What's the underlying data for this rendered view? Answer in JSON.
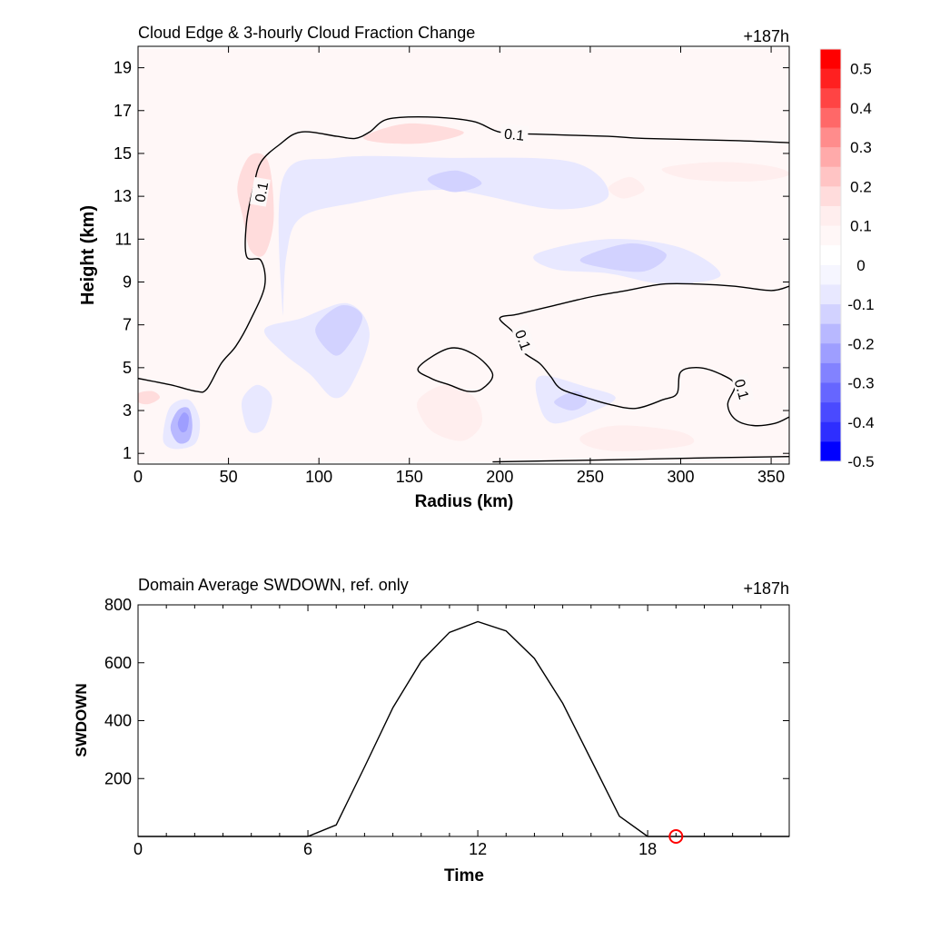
{
  "chart_data": [
    {
      "type": "contour",
      "title": "Cloud Edge & 3-hourly Cloud Fraction Change",
      "time_label": "+187h",
      "xlabel": "Radius (km)",
      "ylabel": "Height (km)",
      "xlim": [
        0,
        360
      ],
      "ylim": [
        0.5,
        20
      ],
      "xticks": [
        0,
        50,
        100,
        150,
        200,
        250,
        300,
        350
      ],
      "yticks": [
        1,
        3,
        5,
        7,
        9,
        11,
        13,
        15,
        17,
        19
      ],
      "contour_level": "0.1",
      "contour_labels": [
        {
          "text": "0.1",
          "x": 208,
          "y": 15.9,
          "rotate": 6
        },
        {
          "text": "0.1",
          "x": 68,
          "y": 13.2,
          "rotate": -80
        },
        {
          "text": "0.1",
          "x": 213,
          "y": 6.3,
          "rotate": 70
        },
        {
          "text": "0.1",
          "x": 334,
          "y": 4.0,
          "rotate": 75
        }
      ],
      "contour_lines": [
        [
          [
            0,
            4.5
          ],
          [
            18,
            4.2
          ],
          [
            32,
            3.9
          ],
          [
            38,
            4.0
          ],
          [
            46,
            5.2
          ],
          [
            54,
            6.0
          ],
          [
            62,
            7.2
          ],
          [
            70,
            8.8
          ],
          [
            68,
            10.0
          ],
          [
            60,
            10.2
          ],
          [
            60,
            11.8
          ],
          [
            64,
            13.5
          ],
          [
            68,
            14.6
          ],
          [
            78,
            15.4
          ],
          [
            90,
            16.0
          ],
          [
            110,
            15.8
          ],
          [
            120,
            15.7
          ],
          [
            128,
            16.0
          ],
          [
            138,
            16.6
          ],
          [
            160,
            16.7
          ],
          [
            185,
            16.5
          ],
          [
            200,
            16.0
          ],
          [
            220,
            15.9
          ],
          [
            260,
            15.8
          ],
          [
            280,
            15.7
          ],
          [
            330,
            15.6
          ],
          [
            360,
            15.5
          ]
        ],
        [
          [
            360,
            8.8
          ],
          [
            350,
            8.6
          ],
          [
            330,
            8.8
          ],
          [
            310,
            8.9
          ],
          [
            290,
            8.9
          ],
          [
            270,
            8.6
          ],
          [
            250,
            8.3
          ],
          [
            230,
            7.9
          ],
          [
            210,
            7.5
          ],
          [
            200,
            7.3
          ],
          [
            208,
            6.6
          ],
          [
            212,
            5.8
          ],
          [
            222,
            5.2
          ],
          [
            228,
            4.6
          ],
          [
            234,
            4.0
          ],
          [
            248,
            3.6
          ],
          [
            260,
            3.3
          ],
          [
            275,
            3.1
          ],
          [
            290,
            3.5
          ],
          [
            298,
            3.8
          ],
          [
            300,
            4.8
          ],
          [
            310,
            5.0
          ],
          [
            322,
            4.7
          ],
          [
            330,
            4.2
          ],
          [
            326,
            3.3
          ],
          [
            330,
            2.6
          ],
          [
            340,
            2.3
          ],
          [
            352,
            2.4
          ],
          [
            360,
            2.7
          ]
        ],
        [
          [
            155,
            5.0
          ],
          [
            172,
            5.9
          ],
          [
            186,
            5.6
          ],
          [
            196,
            4.7
          ],
          [
            190,
            4.0
          ],
          [
            182,
            3.9
          ],
          [
            172,
            4.2
          ],
          [
            162,
            4.5
          ],
          [
            155,
            5.0
          ]
        ],
        [
          [
            196,
            0.6
          ],
          [
            260,
            0.7
          ],
          [
            320,
            0.8
          ],
          [
            360,
            0.85
          ]
        ]
      ],
      "colorbar": {
        "levels": [
          0.5,
          0.45,
          0.4,
          0.35,
          0.3,
          0.25,
          0.2,
          0.15,
          0.1,
          0.05,
          0,
          -0.05,
          -0.1,
          -0.15,
          -0.2,
          -0.25,
          -0.3,
          -0.35,
          -0.4,
          -0.45,
          -0.5
        ],
        "tick_labels": [
          "0.5",
          "0.4",
          "0.3",
          "0.2",
          "0.1",
          "0",
          "-0.1",
          "-0.2",
          "-0.3",
          "-0.4",
          "-0.5"
        ],
        "colors": [
          "#ff0000",
          "#ff2020",
          "#ff4444",
          "#ff6868",
          "#ff8c8c",
          "#ffaaaa",
          "#ffc4c4",
          "#ffdcdc",
          "#ffeeee",
          "#fff7f7",
          "#ffffff",
          "#f6f6ff",
          "#e8e8ff",
          "#d2d2ff",
          "#b8b8ff",
          "#9e9eff",
          "#8282ff",
          "#6666ff",
          "#4a4aff",
          "#2e2eff",
          "#0000ff"
        ]
      },
      "fill_regions": [
        {
          "value": 0.05,
          "poly": [
            [
              0,
              0.6
            ],
            [
              360,
              0.6
            ],
            [
              360,
              19.9
            ],
            [
              0,
              19.9
            ]
          ]
        },
        {
          "value": 0.15,
          "poly": [
            [
              125,
              15.8
            ],
            [
              150,
              16.4
            ],
            [
              180,
              16.0
            ],
            [
              160,
              15.5
            ],
            [
              135,
              15.5
            ]
          ]
        },
        {
          "value": 0.15,
          "poly": [
            [
              55,
              13.5
            ],
            [
              62,
              14.9
            ],
            [
              72,
              14.6
            ],
            [
              75,
              12.0
            ],
            [
              70,
              10.3
            ],
            [
              62,
              10.5
            ],
            [
              58,
              12.0
            ]
          ]
        },
        {
          "value": 0.1,
          "poly": [
            [
              290,
              14.3
            ],
            [
              320,
              14.6
            ],
            [
              350,
              14.4
            ],
            [
              360,
              14.0
            ],
            [
              340,
              13.7
            ],
            [
              305,
              13.8
            ]
          ]
        },
        {
          "value": 0.1,
          "poly": [
            [
              260,
              13.4
            ],
            [
              272,
              13.9
            ],
            [
              280,
              13.3
            ],
            [
              268,
              12.9
            ]
          ]
        },
        {
          "value": 0.1,
          "poly": [
            [
              155,
              3.5
            ],
            [
              170,
              4.2
            ],
            [
              186,
              3.6
            ],
            [
              190,
              2.4
            ],
            [
              180,
              1.6
            ],
            [
              165,
              1.9
            ],
            [
              157,
              2.6
            ]
          ]
        },
        {
          "value": 0.1,
          "poly": [
            [
              245,
              1.8
            ],
            [
              265,
              2.3
            ],
            [
              300,
              2.0
            ],
            [
              305,
              1.4
            ],
            [
              270,
              1.1
            ],
            [
              250,
              1.3
            ]
          ]
        },
        {
          "value": 0.15,
          "poly": [
            [
              0,
              3.8
            ],
            [
              8,
              3.9
            ],
            [
              12,
              3.6
            ],
            [
              6,
              3.3
            ],
            [
              0,
              3.4
            ]
          ]
        },
        {
          "value": -0.1,
          "poly": [
            [
              80,
              13.8
            ],
            [
              110,
              14.8
            ],
            [
              170,
              14.8
            ],
            [
              240,
              14.6
            ],
            [
              260,
              13.0
            ],
            [
              230,
              12.4
            ],
            [
              170,
              13.3
            ],
            [
              120,
              12.7
            ],
            [
              90,
              12.0
            ],
            [
              82,
              10.2
            ],
            [
              80,
              7.5
            ]
          ]
        },
        {
          "value": -0.15,
          "poly": [
            [
              160,
              13.8
            ],
            [
              176,
              14.2
            ],
            [
              190,
              13.6
            ],
            [
              174,
              13.2
            ]
          ]
        },
        {
          "value": -0.1,
          "poly": [
            [
              220,
              10.3
            ],
            [
              260,
              11.0
            ],
            [
              300,
              10.6
            ],
            [
              322,
              9.3
            ],
            [
              292,
              8.9
            ],
            [
              260,
              9.4
            ],
            [
              230,
              9.6
            ]
          ]
        },
        {
          "value": -0.15,
          "poly": [
            [
              245,
              10.1
            ],
            [
              272,
              10.8
            ],
            [
              292,
              10.3
            ],
            [
              280,
              9.5
            ],
            [
              255,
              9.7
            ]
          ]
        },
        {
          "value": -0.1,
          "poly": [
            [
              70,
              6.8
            ],
            [
              90,
              7.3
            ],
            [
              116,
              8.0
            ],
            [
              128,
              6.6
            ],
            [
              118,
              4.2
            ],
            [
              108,
              3.6
            ],
            [
              95,
              4.7
            ],
            [
              80,
              5.7
            ]
          ]
        },
        {
          "value": -0.15,
          "poly": [
            [
              98,
              6.8
            ],
            [
              112,
              7.9
            ],
            [
              124,
              7.4
            ],
            [
              116,
              6.0
            ],
            [
              108,
              5.6
            ]
          ]
        },
        {
          "value": -0.1,
          "poly": [
            [
              222,
              4.6
            ],
            [
              248,
              4.1
            ],
            [
              264,
              3.6
            ],
            [
              250,
              2.9
            ],
            [
              230,
              2.4
            ],
            [
              222,
              3.2
            ]
          ]
        },
        {
          "value": -0.15,
          "poly": [
            [
              230,
              3.4
            ],
            [
              242,
              3.9
            ],
            [
              248,
              3.4
            ],
            [
              240,
              3.0
            ]
          ]
        },
        {
          "value": -0.1,
          "poly": [
            [
              58,
              3.6
            ],
            [
              66,
              4.2
            ],
            [
              74,
              3.6
            ],
            [
              70,
              2.2
            ],
            [
              62,
              2.0
            ],
            [
              58,
              2.8
            ]
          ]
        },
        {
          "value": -0.1,
          "poly": [
            [
              14,
              2.0
            ],
            [
              18,
              3.2
            ],
            [
              28,
              3.5
            ],
            [
              34,
              2.6
            ],
            [
              32,
              1.5
            ],
            [
              22,
              1.2
            ],
            [
              15,
              1.4
            ]
          ]
        },
        {
          "value": -0.2,
          "poly": [
            [
              18,
              2.2
            ],
            [
              22,
              3.0
            ],
            [
              28,
              3.1
            ],
            [
              30,
              2.3
            ],
            [
              28,
              1.6
            ],
            [
              22,
              1.5
            ]
          ]
        },
        {
          "value": -0.25,
          "poly": [
            [
              22,
              2.4
            ],
            [
              25,
              2.9
            ],
            [
              28,
              2.7
            ],
            [
              27,
              2.1
            ],
            [
              24,
              2.0
            ]
          ]
        }
      ]
    },
    {
      "type": "line",
      "title": "Domain Average SWDOWN, ref. only",
      "time_label": "+187h",
      "xlabel": "Time",
      "ylabel": "SWDOWN",
      "xlim": [
        0,
        23
      ],
      "ylim": [
        0,
        800
      ],
      "xticks": [
        0,
        6,
        12,
        18
      ],
      "yticks": [
        200,
        400,
        600,
        800
      ],
      "x": [
        0,
        1,
        2,
        3,
        4,
        5,
        6,
        7,
        8,
        9,
        10,
        11,
        12,
        13,
        14,
        15,
        16,
        17,
        18,
        19,
        20,
        21,
        22,
        23
      ],
      "values": [
        0,
        0,
        0,
        0,
        0,
        0,
        0,
        40,
        240,
        445,
        605,
        705,
        742,
        710,
        615,
        460,
        265,
        70,
        0,
        0,
        0,
        0,
        0,
        0
      ],
      "marker": {
        "x": 19,
        "y": 0,
        "color": "#ff0000"
      }
    }
  ]
}
